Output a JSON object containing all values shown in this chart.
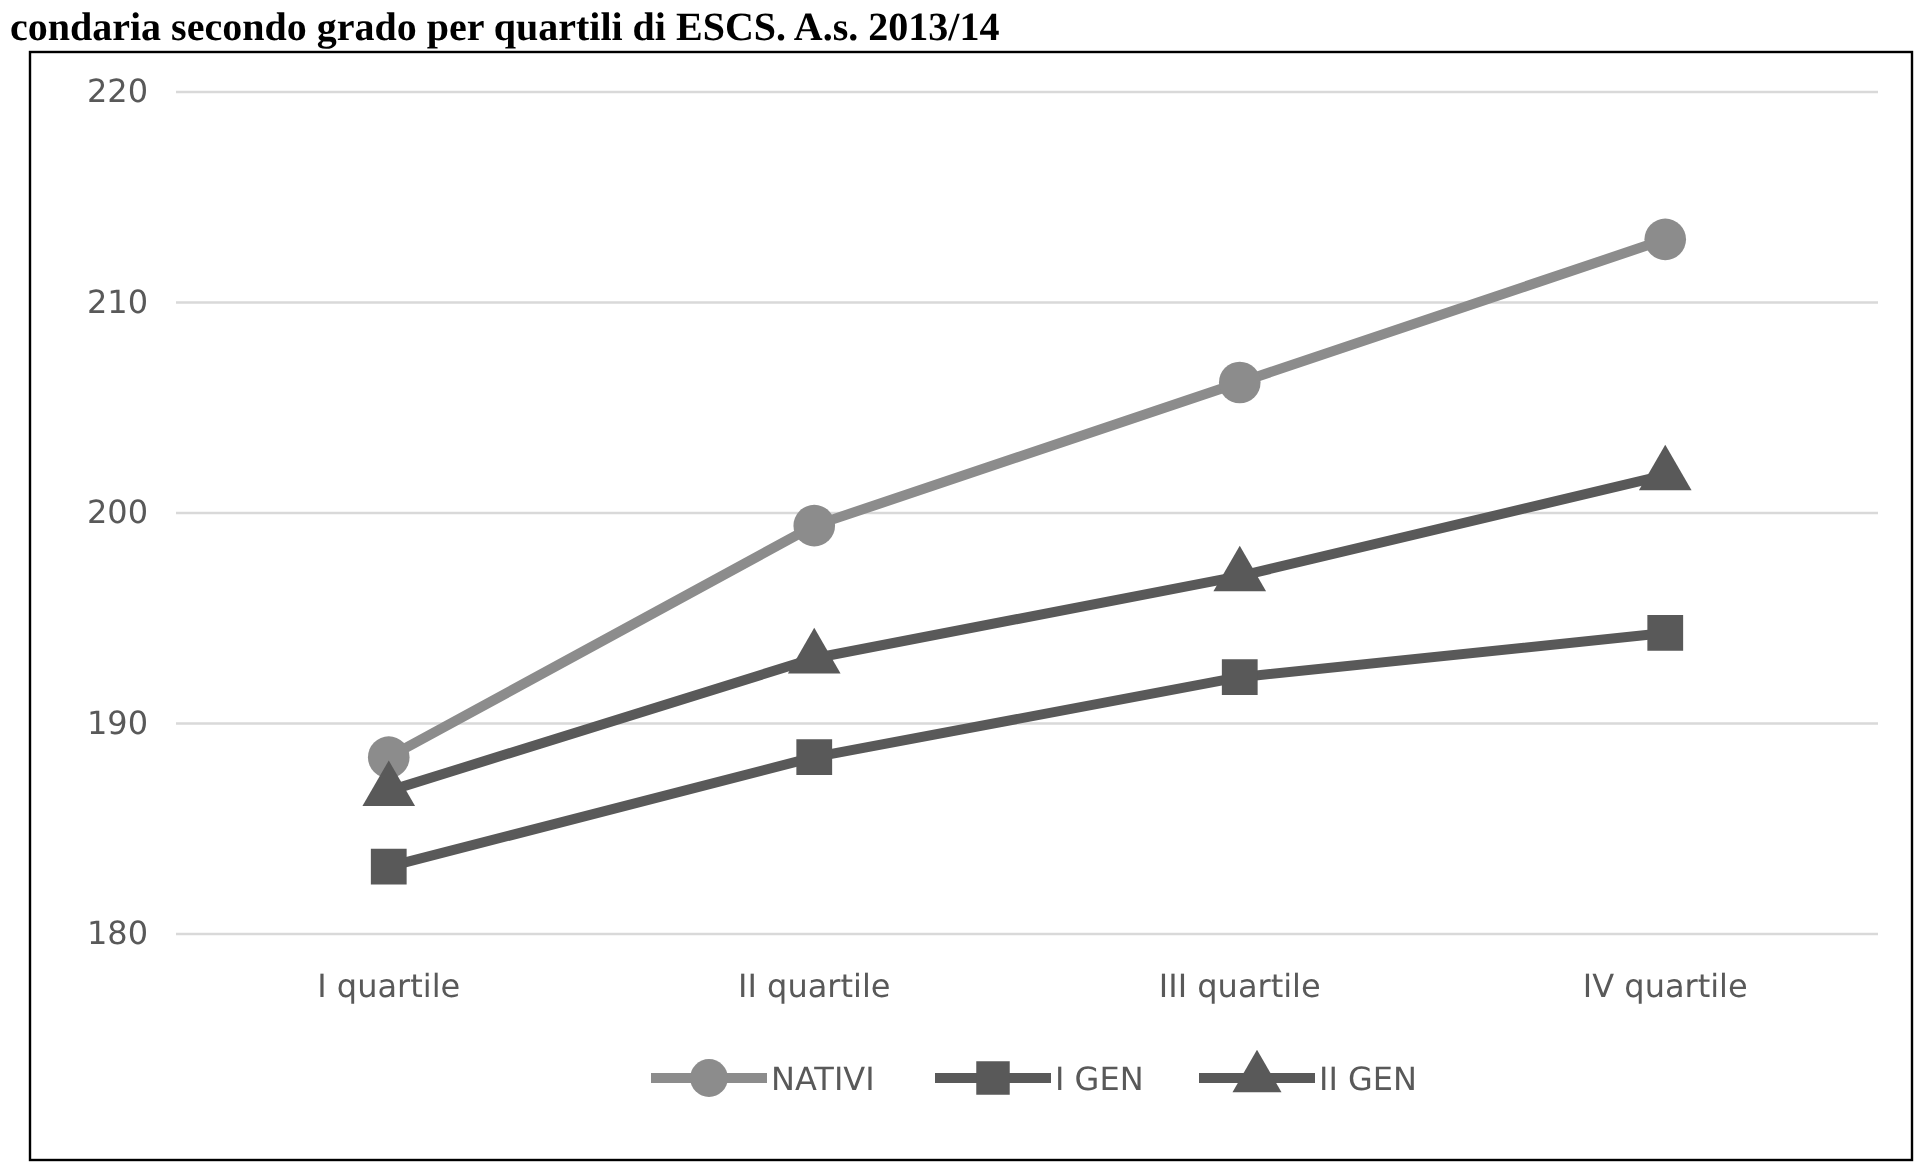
{
  "chart_data": {
    "type": "line",
    "title": "condaria secondo grado per quartili di ESCS. A.s. 2013/14",
    "categories": [
      "I quartile",
      "II quartile",
      "III quartile",
      "IV quartile"
    ],
    "series": [
      {
        "name": "NATIVI",
        "color": "#8c8c8c",
        "marker": "circle",
        "values": [
          188.4,
          199.4,
          206.2,
          213.0
        ]
      },
      {
        "name": "I GEN",
        "color": "#595959",
        "marker": "square",
        "values": [
          183.2,
          188.4,
          192.2,
          194.3
        ]
      },
      {
        "name": "II GEN",
        "color": "#595959",
        "marker": "triangle",
        "values": [
          186.8,
          193.1,
          197.0,
          201.8
        ]
      }
    ],
    "ylim": [
      180,
      220
    ],
    "yticks": [
      180,
      190,
      200,
      210,
      220
    ],
    "grid": "y",
    "legend": "bottom",
    "line_style": "solid"
  }
}
